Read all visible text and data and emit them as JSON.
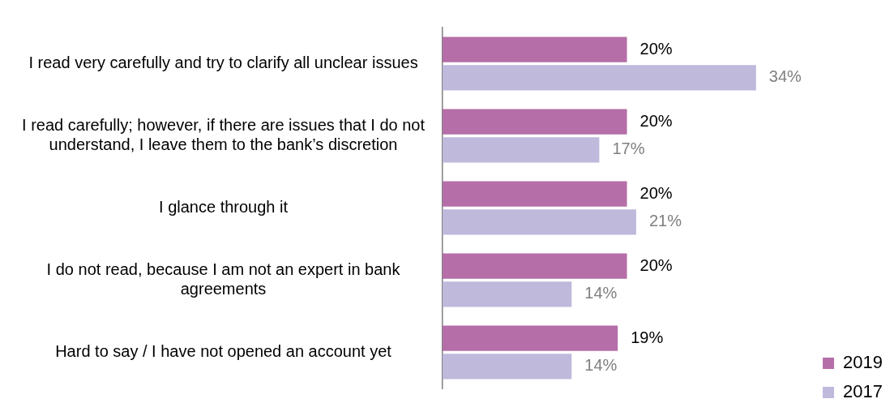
{
  "chart_data": {
    "type": "bar",
    "orientation": "horizontal",
    "categories": [
      "I read very carefully and try to clarify all unclear issues",
      "I read carefully; however, if there are issues that I do not understand, I leave them to the bank’s discretion",
      "I glance through it",
      "I do not read, because I am not an expert in bank agreements",
      "Hard to say / I have not opened an account yet"
    ],
    "series": [
      {
        "name": "2019",
        "color": "#b56ea8",
        "values": [
          20,
          20,
          20,
          20,
          19
        ],
        "value_labels": [
          "20%",
          "20%",
          "20%",
          "20%",
          "19%"
        ]
      },
      {
        "name": "2017",
        "color": "#bfb9dc",
        "values": [
          34,
          17,
          21,
          14,
          14
        ],
        "value_labels": [
          "34%",
          "17%",
          "21%",
          "14%",
          "14%"
        ]
      }
    ],
    "legend": "bottom right"
  }
}
